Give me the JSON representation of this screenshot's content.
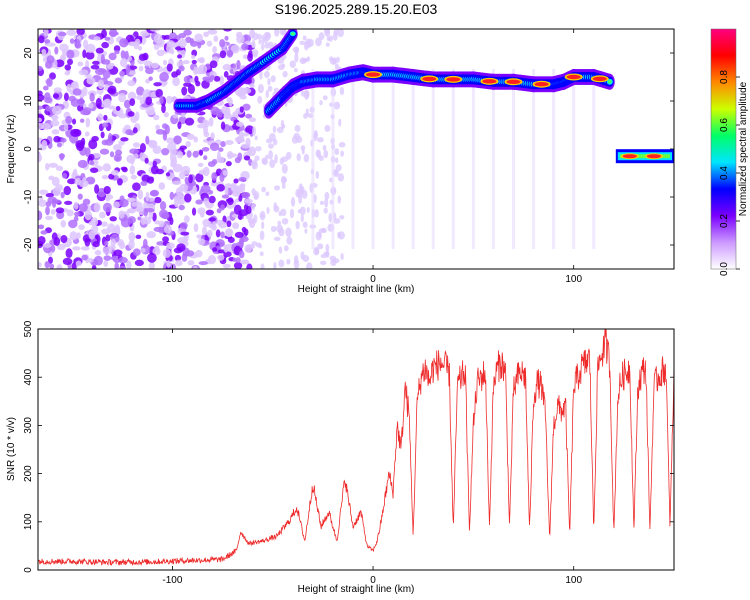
{
  "title": "S196.2025.289.15.20.E03",
  "colors": {
    "trace": "#ee2a2a",
    "frame": "#000000"
  },
  "chart_data": [
    {
      "type": "heatmap",
      "title": "S196.2025.289.15.20.E03",
      "xlabel": "Height of straight line (km)",
      "ylabel": "Frequency (Hz)",
      "xlim": [
        -167,
        150
      ],
      "ylim": [
        -25,
        25
      ],
      "x_ticks": [
        -100,
        0,
        100
      ],
      "y_ticks": [
        -20,
        -10,
        0,
        10,
        20
      ],
      "x_tick_labels": [
        "-100",
        "0",
        "100"
      ],
      "y_tick_labels": [
        "-20",
        "-10",
        "0",
        "10",
        "20"
      ],
      "colorbar": {
        "label": "Normalized spectral amplitude",
        "range": [
          0,
          1
        ],
        "ticks": [
          "0.0",
          "0.2",
          "0.4",
          "0.6",
          "0.8"
        ],
        "colormap": [
          "#ffffff",
          "#cc99ff",
          "#7a00ff",
          "#0000ff",
          "#00e5ff",
          "#00ff66",
          "#ccff00",
          "#ff8800",
          "#ff0000",
          "#ff0080"
        ]
      },
      "ridge": [
        {
          "x": -97,
          "y": 9
        },
        {
          "x": -88,
          "y": 9
        },
        {
          "x": -82,
          "y": 10
        },
        {
          "x": -74,
          "y": 12
        },
        {
          "x": -68,
          "y": 14
        },
        {
          "x": -62,
          "y": 16
        },
        {
          "x": -55,
          "y": 18
        },
        {
          "x": -45,
          "y": 21
        },
        {
          "x": -40,
          "y": 24
        }
      ],
      "ridge2": [
        {
          "x": -52,
          "y": 8
        },
        {
          "x": -45,
          "y": 11
        },
        {
          "x": -40,
          "y": 13
        },
        {
          "x": -35,
          "y": 14
        },
        {
          "x": -28,
          "y": 14.5
        },
        {
          "x": -20,
          "y": 14.5
        },
        {
          "x": -12,
          "y": 15.5
        },
        {
          "x": -5,
          "y": 16
        },
        {
          "x": 0,
          "y": 15.5
        },
        {
          "x": 10,
          "y": 15.5
        },
        {
          "x": 20,
          "y": 15
        },
        {
          "x": 30,
          "y": 14.5
        },
        {
          "x": 40,
          "y": 14.5
        },
        {
          "x": 50,
          "y": 14.5
        },
        {
          "x": 60,
          "y": 14
        },
        {
          "x": 70,
          "y": 14
        },
        {
          "x": 80,
          "y": 13.5
        },
        {
          "x": 90,
          "y": 13.5
        },
        {
          "x": 95,
          "y": 14
        },
        {
          "x": 100,
          "y": 15
        },
        {
          "x": 110,
          "y": 15
        },
        {
          "x": 118,
          "y": 14
        }
      ],
      "ridge_peaks": [
        0,
        28,
        40,
        58,
        70,
        84,
        100,
        113
      ],
      "tone": {
        "x": [
          121,
          150
        ],
        "y": -1.5,
        "peaks": [
          128,
          140
        ]
      },
      "noise_region": {
        "x_end": -60
      }
    },
    {
      "type": "line",
      "xlabel": "Height of straight line (km)",
      "ylabel": "SNR (10 * v/v)",
      "xlim": [
        -167,
        150
      ],
      "ylim": [
        0,
        500
      ],
      "x_ticks": [
        -100,
        0,
        100
      ],
      "y_ticks": [
        0,
        100,
        200,
        300,
        400,
        500
      ],
      "x_tick_labels": [
        "-100",
        "0",
        "100"
      ],
      "y_tick_labels": [
        "0",
        "100",
        "200",
        "300",
        "400",
        "500"
      ],
      "series": [
        {
          "x": [
            -167,
            -150,
            -130,
            -110,
            -90,
            -75,
            -68,
            -66,
            -62,
            -55,
            -48,
            -42,
            -38,
            -34,
            -30,
            -26,
            -22,
            -18,
            -14,
            -10,
            -6,
            -3,
            0,
            2,
            4,
            6,
            8,
            10,
            12,
            14,
            16,
            18,
            20,
            22,
            24,
            26,
            28,
            30,
            34,
            38,
            40,
            42,
            44,
            46,
            48,
            50,
            52,
            54,
            56,
            58,
            60,
            62,
            64,
            66,
            68,
            70,
            72,
            74,
            76,
            78,
            80,
            82,
            84,
            86,
            88,
            90,
            92,
            94,
            96,
            98,
            100,
            102,
            104,
            106,
            108,
            110,
            112,
            114,
            116,
            118,
            120,
            122,
            124,
            126,
            128,
            130,
            132,
            134,
            136,
            138,
            140,
            142,
            144,
            146,
            148,
            150
          ],
          "y": [
            18,
            18,
            16,
            17,
            20,
            22,
            40,
            80,
            55,
            60,
            70,
            100,
            130,
            60,
            180,
            90,
            120,
            60,
            190,
            90,
            120,
            50,
            40,
            60,
            100,
            150,
            200,
            160,
            300,
            250,
            380,
            320,
            70,
            350,
            400,
            420,
            390,
            420,
            430,
            410,
            80,
            380,
            400,
            410,
            80,
            300,
            390,
            400,
            410,
            90,
            380,
            420,
            430,
            410,
            90,
            370,
            400,
            410,
            400,
            80,
            360,
            390,
            380,
            320,
            60,
            300,
            340,
            330,
            340,
            70,
            380,
            400,
            420,
            430,
            440,
            80,
            420,
            450,
            470,
            430,
            70,
            360,
            400,
            410,
            420,
            80,
            380,
            410,
            420,
            80,
            380,
            400,
            410,
            420,
            90,
            410
          ]
        }
      ]
    }
  ]
}
